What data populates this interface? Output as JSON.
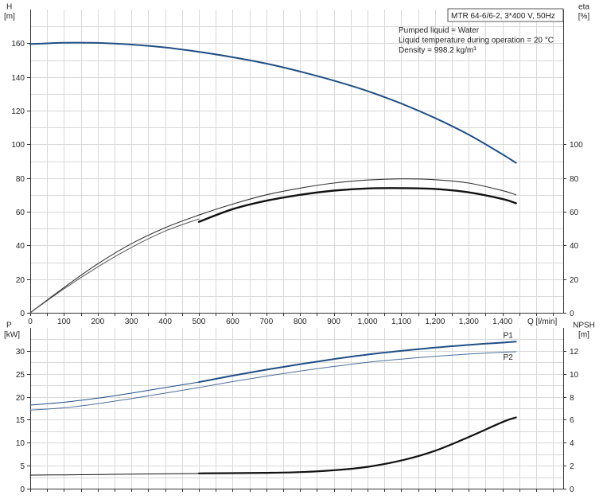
{
  "product_label": "MTR 64-6/6-2, 3*400 V, 50Hz",
  "info_lines": [
    "Pumped liquid = Water",
    "Liquid temperature during operation = 20 °C",
    "Density = 998.2 kg/m³"
  ],
  "chart_data": [
    {
      "type": "line",
      "panel": "top",
      "left_axis": {
        "label": [
          "H",
          "[m]"
        ],
        "range": [
          0,
          180
        ],
        "ticks": [
          0,
          20,
          40,
          60,
          80,
          100,
          120,
          140,
          160
        ]
      },
      "right_axis": {
        "label": [
          "eta",
          "[%]"
        ],
        "range": [
          0,
          180
        ],
        "ticks": [
          0,
          20,
          40,
          60,
          80,
          100
        ]
      },
      "x_axis": {
        "label": "Q [l/min]",
        "range": [
          0,
          1580
        ],
        "ticks": [
          "0",
          "100",
          "200",
          "300",
          "400",
          "500",
          "600",
          "700",
          "800",
          "900",
          "1,000",
          "1,100",
          "1,200",
          "1,300",
          "1,400"
        ],
        "tick_values": [
          0,
          100,
          200,
          300,
          400,
          500,
          600,
          700,
          800,
          900,
          1000,
          1100,
          1200,
          1300,
          1400
        ]
      },
      "grid": true,
      "series": [
        {
          "axis": "left",
          "color": "#1f4e84",
          "width": 2,
          "dash": "",
          "x": [
            0,
            100,
            200,
            300,
            400,
            500,
            600,
            700,
            800,
            900,
            1000,
            1100,
            1200,
            1300,
            1400,
            1440
          ],
          "y": [
            159.5,
            160.3,
            160.2,
            159.2,
            157.5,
            154.9,
            151.7,
            147.9,
            143.2,
            137.8,
            131.6,
            124.2,
            115.6,
            105.7,
            94.0,
            89.0
          ]
        },
        {
          "axis": "right",
          "color": "#333333",
          "width": 1.1,
          "dash": "",
          "x": [
            0,
            100,
            200,
            300,
            400,
            500,
            600,
            700,
            800,
            900,
            1000,
            1100,
            1200,
            1300,
            1400,
            1440
          ],
          "y": [
            0,
            15.0,
            29.0,
            41.0,
            50.5,
            58.0,
            64.5,
            70.0,
            74.0,
            77.0,
            78.8,
            79.5,
            79.0,
            77.0,
            72.5,
            70.0
          ]
        },
        {
          "axis": "right",
          "color": "#555555",
          "width": 1,
          "dash": "",
          "x": [
            0,
            100,
            200,
            300,
            400,
            500
          ],
          "y": [
            0,
            14.2,
            27.2,
            38.8,
            48.5,
            55.7
          ]
        },
        {
          "axis": "right",
          "color": "#111111",
          "width": 2.4,
          "dash": "",
          "x": [
            500,
            600,
            700,
            800,
            900,
            1000,
            1100,
            1200,
            1300,
            1400,
            1440
          ],
          "y": [
            54.0,
            61.5,
            66.5,
            70.0,
            72.5,
            73.8,
            74.0,
            73.5,
            71.5,
            67.5,
            65.0
          ]
        }
      ]
    },
    {
      "type": "line",
      "panel": "bottom",
      "left_axis": {
        "label": [
          "P",
          "[kW]"
        ],
        "range": [
          0,
          35
        ],
        "ticks": [
          0,
          5,
          10,
          15,
          20,
          25,
          30
        ]
      },
      "right_axis": {
        "label": [
          "NPSH",
          "[m]"
        ],
        "range": [
          0,
          14
        ],
        "ticks": [
          0,
          2,
          4,
          6,
          8,
          10,
          12
        ]
      },
      "x_axis": {
        "range": [
          0,
          1580
        ]
      },
      "grid": true,
      "series": [
        {
          "name": "P1",
          "axis": "left",
          "color": "#1f4e84",
          "width": 2,
          "x": [
            500,
            600,
            700,
            800,
            900,
            1000,
            1100,
            1200,
            1300,
            1400,
            1440
          ],
          "y": [
            23.2,
            24.6,
            25.9,
            27.1,
            28.2,
            29.2,
            30.0,
            30.7,
            31.3,
            31.8,
            32.0
          ]
        },
        {
          "axis": "left",
          "color": "#1f4e84",
          "width": 1,
          "x": [
            0,
            100,
            200,
            300,
            400,
            500
          ],
          "y": [
            18.2,
            18.8,
            19.7,
            20.8,
            22.0,
            23.2
          ]
        },
        {
          "name": "P2",
          "axis": "left",
          "color": "#4a6f9c",
          "width": 1,
          "x": [
            0,
            100,
            200,
            300,
            400,
            500,
            600,
            700,
            800,
            900,
            1000,
            1100,
            1200,
            1300,
            1400,
            1440
          ],
          "y": [
            17.1,
            17.6,
            18.5,
            19.6,
            20.8,
            22.0,
            23.3,
            24.5,
            25.6,
            26.6,
            27.5,
            28.2,
            28.8,
            29.3,
            29.7,
            29.8
          ]
        },
        {
          "axis": "right",
          "color": "#111111",
          "width": 1,
          "x": [
            0,
            100,
            200,
            300,
            400,
            500
          ],
          "y": [
            1.18,
            1.2,
            1.23,
            1.26,
            1.29,
            1.32
          ]
        },
        {
          "axis": "right",
          "color": "#111111",
          "width": 2.2,
          "x": [
            500,
            600,
            700,
            800,
            900,
            1000,
            1100,
            1200,
            1300,
            1400,
            1440
          ],
          "y": [
            1.33,
            1.35,
            1.38,
            1.44,
            1.6,
            1.9,
            2.45,
            3.3,
            4.5,
            5.8,
            6.2
          ]
        }
      ]
    }
  ]
}
